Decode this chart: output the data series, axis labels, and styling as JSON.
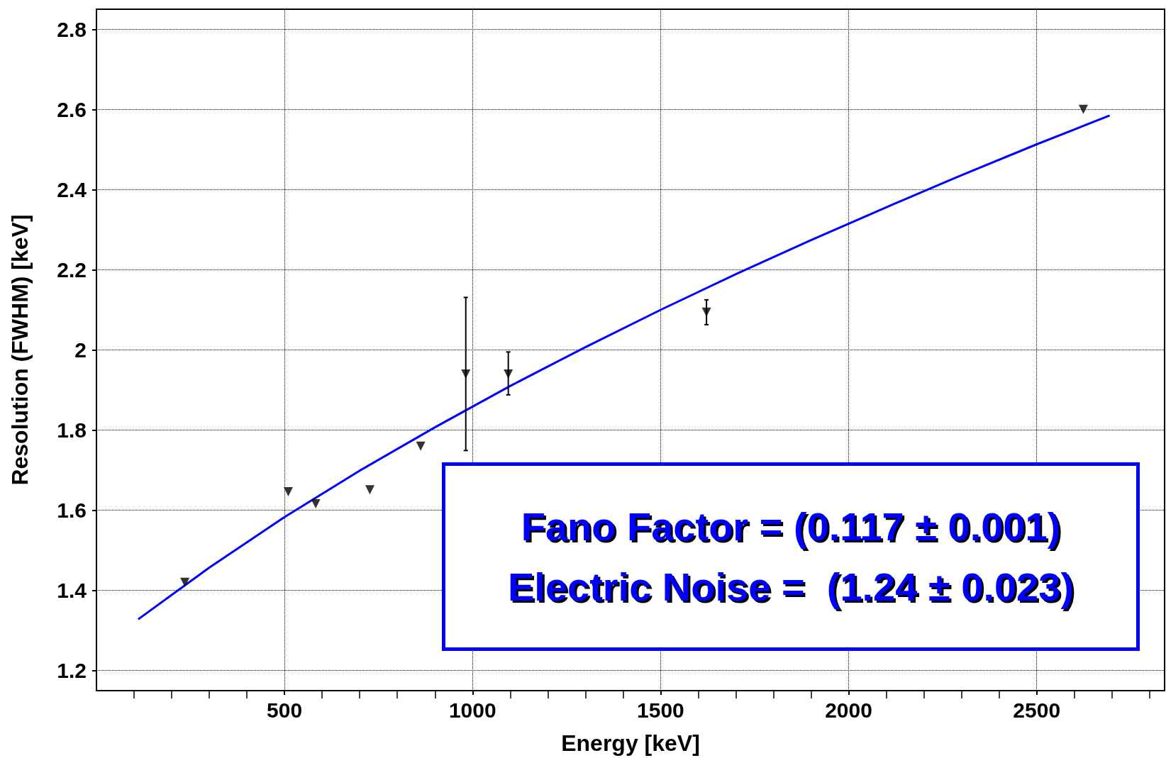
{
  "chart_data": {
    "type": "scatter",
    "xlabel": "Energy [keV]",
    "ylabel": "Resolution (FWHM) [keV]",
    "xlim": [
      0,
      2840
    ],
    "ylim": [
      1.15,
      2.85
    ],
    "xticks": [
      500,
      1000,
      1500,
      2000,
      2500
    ],
    "yticks": [
      1.2,
      1.4,
      1.6,
      1.8,
      2,
      2.2,
      2.4,
      2.6,
      2.8
    ],
    "grid": true,
    "series": [
      {
        "type": "scatter",
        "color": "#000000",
        "marker": "triangle",
        "x": [
          235,
          510,
          583,
          727,
          862,
          982,
          1095,
          1622,
          2624
        ],
        "values": [
          1.42,
          1.646,
          1.616,
          1.651,
          1.76,
          1.94,
          1.94,
          2.094,
          2.6
        ],
        "errors": [
          null,
          null,
          null,
          null,
          null,
          [
            1.749,
            2.131
          ],
          [
            1.888,
            1.995
          ],
          [
            2.063,
            2.125
          ],
          null
        ]
      },
      {
        "type": "line",
        "color": "#0000ff",
        "marker": "none",
        "line_style": "solid",
        "x": [
          111,
          300,
          500,
          700,
          900,
          1100,
          1300,
          1500,
          1700,
          1900,
          2100,
          2300,
          2500,
          2600,
          2694
        ],
        "values": [
          1.328,
          1.457,
          1.583,
          1.699,
          1.807,
          1.91,
          2.007,
          2.1,
          2.189,
          2.274,
          2.356,
          2.436,
          2.513,
          2.55,
          2.585
        ]
      }
    ],
    "annotations": [
      "Fano Factor = (0.117 ± 0.001)",
      "Electric Noise =  (1.24 ± 0.023)"
    ]
  }
}
